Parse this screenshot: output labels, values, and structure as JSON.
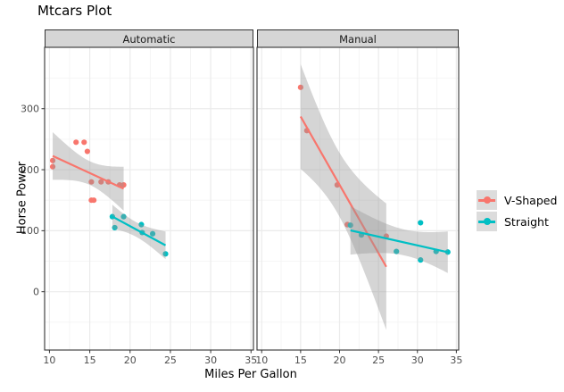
{
  "title": "Mtcars Plot",
  "facets": [
    {
      "label": "Automatic"
    },
    {
      "label": "Manual"
    }
  ],
  "axes": {
    "x_title": "Miles Per Gallon",
    "y_title": "Horse Power",
    "x_ticks": [
      10,
      15,
      20,
      25,
      30,
      35
    ],
    "y_ticks": [
      0,
      100,
      200,
      300
    ],
    "x_minor": [
      12.5,
      17.5,
      22.5,
      27.5,
      32.5
    ],
    "y_minor": [
      -50,
      50,
      150,
      250,
      350
    ],
    "x_domain": [
      9.4,
      35.3
    ],
    "y_domain": [
      -95.6,
      400.6
    ]
  },
  "legend": {
    "entries": [
      {
        "label": "V-Shaped",
        "color": "#F8766D"
      },
      {
        "label": "Straight",
        "color": "#00BFC4"
      }
    ]
  },
  "colors": {
    "vshaped": "#F8766D",
    "straight": "#00BFC4",
    "ribbon": "rgba(150,150,150,0.4)",
    "strip_bg": "#D5D5D5",
    "panel_border": "#333333",
    "grid_major": "#EBEBEB",
    "grid_minor": "#F4F4F4",
    "tick_label": "#4D4D4D",
    "tick_mark": "#333333"
  },
  "chart_data": {
    "type": "scatter",
    "title": "Mtcars Plot",
    "xlabel": "Miles Per Gallon",
    "ylabel": "Horse Power",
    "facets": [
      "Automatic",
      "Manual"
    ],
    "smooth": "linear regression with 95% confidence ribbon per group",
    "xlim": [
      9.4,
      35.3
    ],
    "ylim": [
      -95,
      400
    ],
    "legend_position": "right",
    "grid": true,
    "series": [
      {
        "name": "V-Shaped",
        "facet": "Automatic",
        "color": "#F8766D",
        "points": [
          [
            10.4,
            205
          ],
          [
            10.4,
            215
          ],
          [
            13.3,
            245
          ],
          [
            14.3,
            245
          ],
          [
            14.7,
            230
          ],
          [
            15.2,
            150
          ],
          [
            15.2,
            180
          ],
          [
            15.5,
            150
          ],
          [
            16.4,
            180
          ],
          [
            17.3,
            180
          ],
          [
            18.7,
            175
          ],
          [
            19.2,
            175
          ]
        ]
      },
      {
        "name": "Straight",
        "facet": "Automatic",
        "color": "#00BFC4",
        "points": [
          [
            17.8,
            123
          ],
          [
            18.1,
            105
          ],
          [
            19.2,
            123
          ],
          [
            21.4,
            110
          ],
          [
            21.5,
            97
          ],
          [
            22.8,
            95
          ],
          [
            24.4,
            62
          ]
        ]
      },
      {
        "name": "V-Shaped",
        "facet": "Manual",
        "color": "#F8766D",
        "points": [
          [
            15.0,
            335
          ],
          [
            15.8,
            264
          ],
          [
            19.7,
            175
          ],
          [
            21.0,
            110
          ],
          [
            21.0,
            110
          ],
          [
            26.0,
            91
          ]
        ]
      },
      {
        "name": "Straight",
        "facet": "Manual",
        "color": "#00BFC4",
        "points": [
          [
            21.4,
            109
          ],
          [
            22.8,
            93
          ],
          [
            27.3,
            66
          ],
          [
            30.4,
            52
          ],
          [
            30.4,
            113
          ],
          [
            32.4,
            66
          ],
          [
            33.9,
            65
          ]
        ]
      }
    ]
  }
}
